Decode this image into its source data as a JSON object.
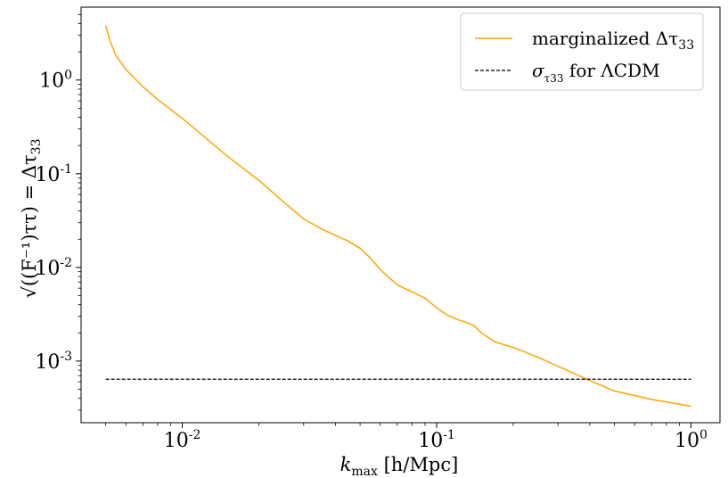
{
  "chart_data": {
    "type": "line",
    "xscale": "log",
    "yscale": "log",
    "xlim": [
      0.004,
      1.3
    ],
    "ylim": [
      0.00022,
      6.0
    ],
    "x_ticks": [
      {
        "value": 0.01,
        "base": "10",
        "exp": "-2"
      },
      {
        "value": 0.1,
        "base": "10",
        "exp": "-1"
      },
      {
        "value": 1,
        "base": "10",
        "exp": "0"
      }
    ],
    "y_ticks": [
      {
        "value": 0.001,
        "base": "10",
        "exp": "-3"
      },
      {
        "value": 0.01,
        "base": "10",
        "exp": "-2"
      },
      {
        "value": 0.1,
        "base": "10",
        "exp": "-1"
      },
      {
        "value": 1,
        "base": "10",
        "exp": "0"
      }
    ],
    "xlabel": "k_max [h/Mpc]",
    "ylabel": "√((F⁻¹)_ττ) = Δτ₃₃",
    "legend_position": "top-right",
    "series": [
      {
        "name": "marginalized Δτ₃₃",
        "color": "#ffa500",
        "style": "solid",
        "x": [
          0.005,
          0.0052,
          0.0055,
          0.006,
          0.007,
          0.008,
          0.01,
          0.015,
          0.02,
          0.025,
          0.03,
          0.035,
          0.04,
          0.045,
          0.05,
          0.055,
          0.06,
          0.07,
          0.08,
          0.09,
          0.1,
          0.11,
          0.12,
          0.13,
          0.14,
          0.15,
          0.17,
          0.2,
          0.25,
          0.3,
          0.4,
          0.5,
          0.7,
          1.0
        ],
        "y": [
          3.8,
          2.6,
          1.8,
          1.3,
          0.85,
          0.62,
          0.39,
          0.155,
          0.085,
          0.05,
          0.033,
          0.026,
          0.022,
          0.019,
          0.016,
          0.0125,
          0.0095,
          0.0065,
          0.0055,
          0.0047,
          0.0037,
          0.0031,
          0.0028,
          0.0026,
          0.0024,
          0.002,
          0.0016,
          0.0014,
          0.0011,
          0.00088,
          0.00062,
          0.00048,
          0.00039,
          0.00033
        ]
      },
      {
        "name": "σ_τ₃₃ for ΛCDM",
        "color": "#000000",
        "style": "dashed",
        "x": [
          0.005,
          1.0
        ],
        "y": [
          0.00064,
          0.00064
        ]
      }
    ]
  },
  "legend": {
    "entries": [
      {
        "label": "marginalized Δτ",
        "sub": "33"
      },
      {
        "label": "σ",
        "sub": "τ33",
        "suffix": " for ΛCDM"
      }
    ]
  },
  "xlabel": {
    "k": "k",
    "sub": "max",
    "rest": " [h/Mpc]"
  },
  "ylabel": {
    "main": "√((F⁻¹)ττ) = Δτ",
    "sub": "33"
  }
}
